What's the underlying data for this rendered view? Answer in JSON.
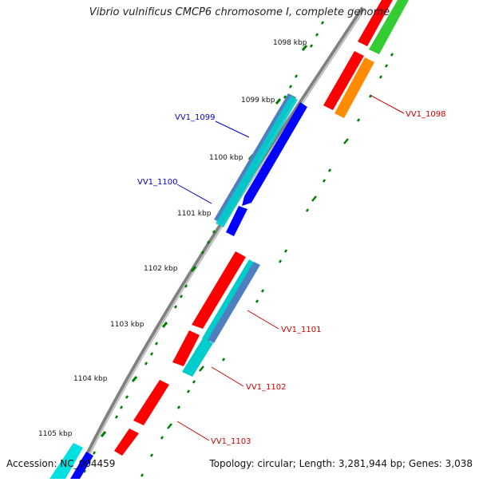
{
  "title": "Vibrio vulnificus CMCP6 chromosome I, complete genome",
  "footer": {
    "accession": "Accession: NC_004459",
    "summary": "Topology: circular; Length: 3,281,944 bp; Genes: 3,038"
  },
  "ticks": [
    {
      "label": "1098 kbp"
    },
    {
      "label": "1099 kbp"
    },
    {
      "label": "1100 kbp"
    },
    {
      "label": "1101 kbp"
    },
    {
      "label": "1102 kbp"
    },
    {
      "label": "1103 kbp"
    },
    {
      "label": "1104 kbp"
    },
    {
      "label": "1105 kbp"
    }
  ],
  "gene_labels": [
    {
      "name": "VV1_1099",
      "color": "#0000cc"
    },
    {
      "name": "VV1_1100",
      "color": "#0000cc"
    },
    {
      "name": "VV1_1098",
      "color": "#cc0000"
    },
    {
      "name": "VV1_1101",
      "color": "#cc0000"
    },
    {
      "name": "VV1_1102",
      "color": "#cc0000"
    },
    {
      "name": "VV1_1103",
      "color": "#cc0000"
    }
  ],
  "colors": {
    "backbone": "#808080",
    "tick_green": "#008000",
    "red": "#ff0000",
    "blue": "#0000ff",
    "cyan": "#00cccc",
    "steelblue": "#4f7fbf",
    "orange": "#ff8c00",
    "green": "#33cc33"
  }
}
